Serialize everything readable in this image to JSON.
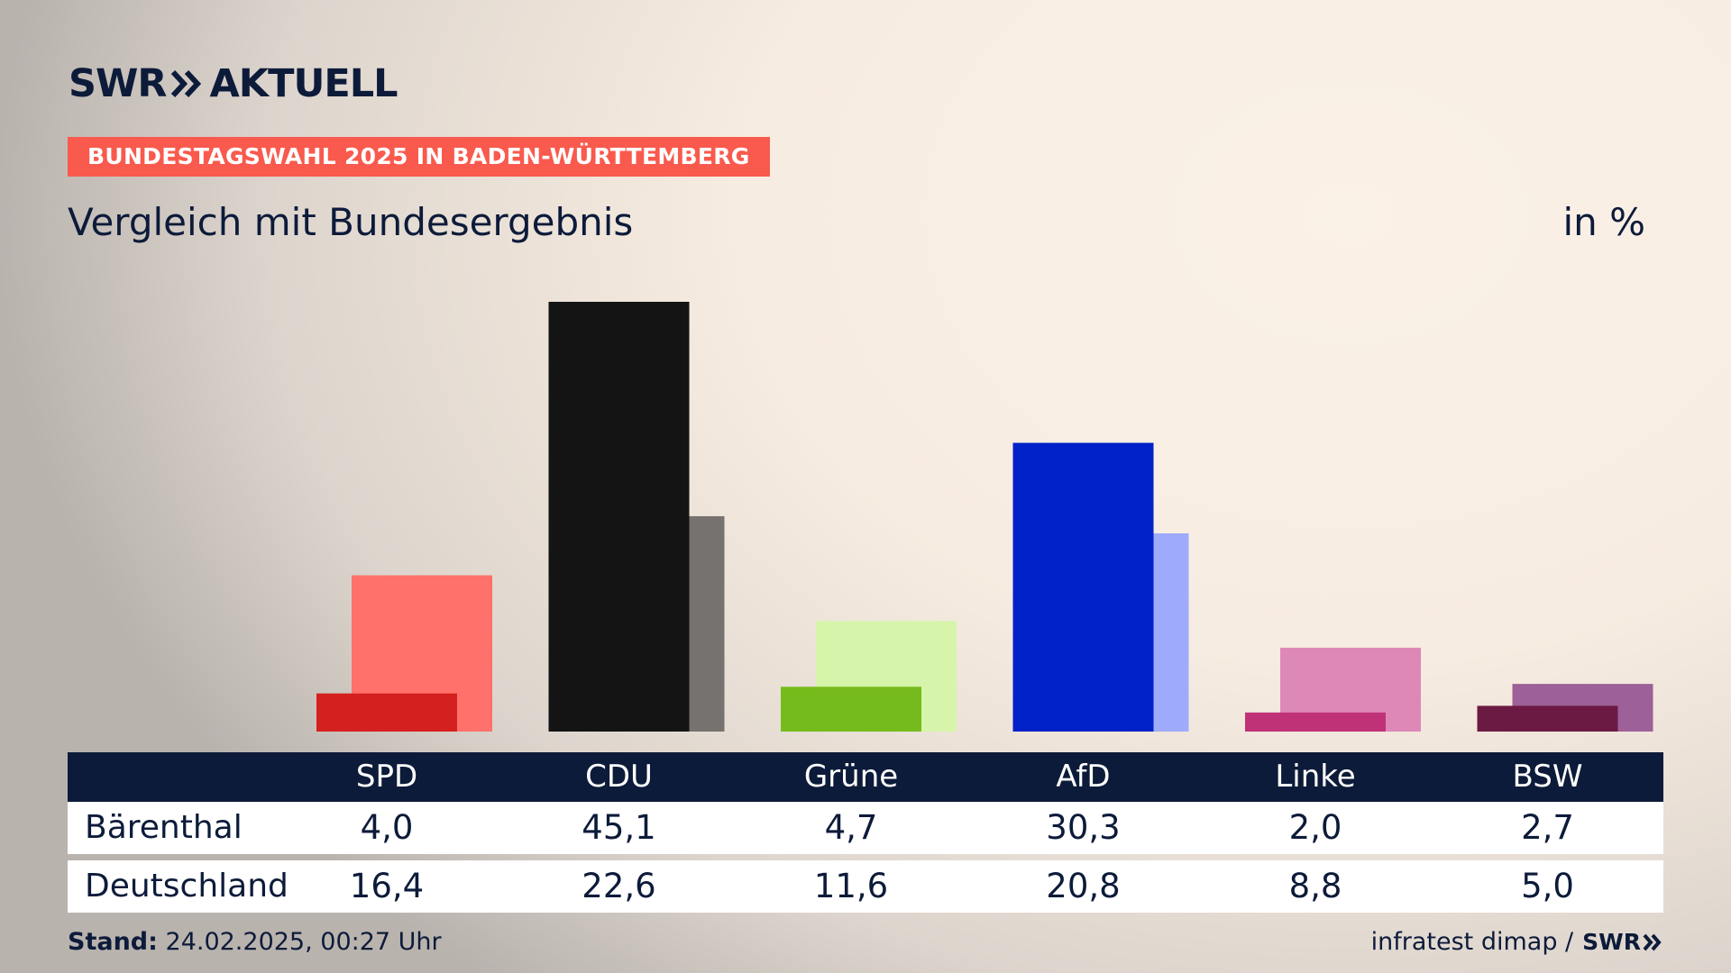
{
  "brand": {
    "swr": "SWR",
    "aktuell": "AKTUELL",
    "footer_brand": "SWR"
  },
  "kicker": "BUNDESTAGSWAHL 2025 IN BADEN-WÜRTTEMBERG",
  "headline": "Vergleich mit Bundesergebnis",
  "unit": "in %",
  "table": {
    "rows": [
      {
        "label": "Bärenthal",
        "values": [
          "4,0",
          "45,1",
          "4,7",
          "30,3",
          "2,0",
          "2,7"
        ]
      },
      {
        "label": "Deutschland",
        "values": [
          "16,4",
          "22,6",
          "11,6",
          "20,8",
          "8,8",
          "5,0"
        ]
      }
    ]
  },
  "footer": {
    "stand_label": "Stand:",
    "stand_value": "24.02.2025, 00:27 Uhr",
    "source": "infratest dimap /"
  },
  "colors": {
    "accent": "#f95a4d",
    "navy": "#0d1b3a"
  },
  "chart_data": {
    "type": "bar",
    "categories": [
      "SPD",
      "CDU",
      "Grüne",
      "AfD",
      "Linke",
      "BSW"
    ],
    "series": [
      {
        "name": "Bärenthal",
        "values": [
          4.0,
          45.1,
          4.7,
          30.3,
          2.0,
          2.7
        ],
        "colors": [
          "#d52020",
          "#141414",
          "#76bb1c",
          "#0022c8",
          "#c03277",
          "#6b1a43"
        ]
      },
      {
        "name": "Deutschland",
        "values": [
          16.4,
          22.6,
          11.6,
          20.8,
          8.8,
          5.0
        ],
        "colors": [
          "#ff716a",
          "#757270",
          "#d6f5aa",
          "#9eabfd",
          "#de88b8",
          "#9d6098"
        ]
      }
    ],
    "ylim": [
      0,
      45.1
    ]
  }
}
